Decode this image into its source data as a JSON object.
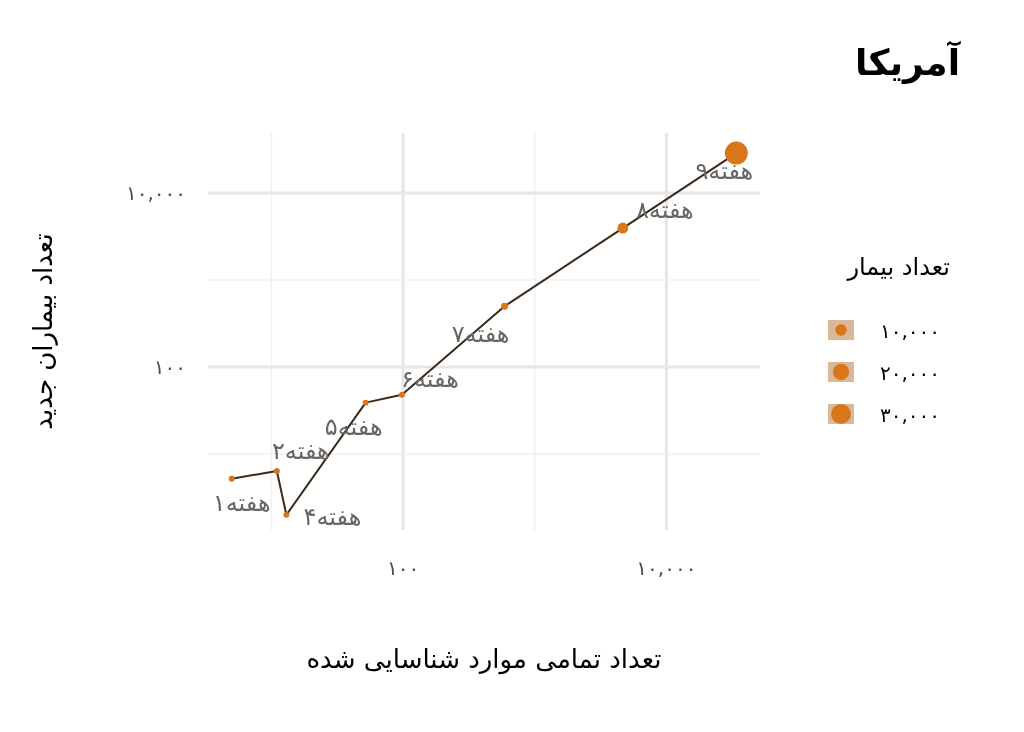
{
  "chart_data": {
    "type": "bubble",
    "title": "آمریکا",
    "xlabel": "تعداد تمامی  موارد شناسایی شده",
    "ylabel": "تعداد بیماران جدید",
    "legend_title": "تعداد بیمار",
    "log": "xy",
    "grid": true,
    "marker": "circle",
    "line_style": "solid",
    "xlim": [
      3.3,
      51400
    ],
    "ylim": [
      1.34,
      49000
    ],
    "xticks": [
      {
        "value": 10,
        "label": null
      },
      {
        "value": 100,
        "label": "۱۰۰"
      },
      {
        "value": 1000,
        "label": null
      },
      {
        "value": 10000,
        "label": "۱۰,۰۰۰"
      }
    ],
    "yticks": [
      {
        "value": 10,
        "label": null
      },
      {
        "value": 100,
        "label": "۱۰۰"
      },
      {
        "value": 1000,
        "label": null
      },
      {
        "value": 10000,
        "label": "۱۰,۰۰۰"
      }
    ],
    "size_legend": [
      {
        "value": 10000,
        "label": "۱۰,۰۰۰"
      },
      {
        "value": 20000,
        "label": "۲۰,۰۰۰"
      },
      {
        "value": 30000,
        "label": "۳۰,۰۰۰"
      }
    ],
    "series": [
      {
        "color": "#d9761a",
        "x": [
          5,
          11,
          13,
          52,
          98,
          590,
          4670,
          34000
        ],
        "values": [
          5.2,
          6.4,
          2,
          39,
          48,
          500,
          3960,
          28800
        ],
        "sizes": [
          2700,
          2700,
          2700,
          2700,
          2700,
          3700,
          9000,
          40000
        ]
      }
    ],
    "annotations": [
      {
        "text": "هفته۱",
        "x": 5,
        "y": 5.2
      },
      {
        "text": "هفته۲",
        "x": 11,
        "y": 6.4
      },
      {
        "text": "هفته۴",
        "x": 13,
        "y": 2
      },
      {
        "text": "هفته۵",
        "x": 52,
        "y": 39
      },
      {
        "text": "هفته۶",
        "x": 98,
        "y": 48
      },
      {
        "text": "هفته۷",
        "x": 590,
        "y": 500
      },
      {
        "text": "هفته۸",
        "x": 4670,
        "y": 3960
      },
      {
        "text": "هفته۹",
        "x": 34000,
        "y": 28800
      }
    ]
  }
}
